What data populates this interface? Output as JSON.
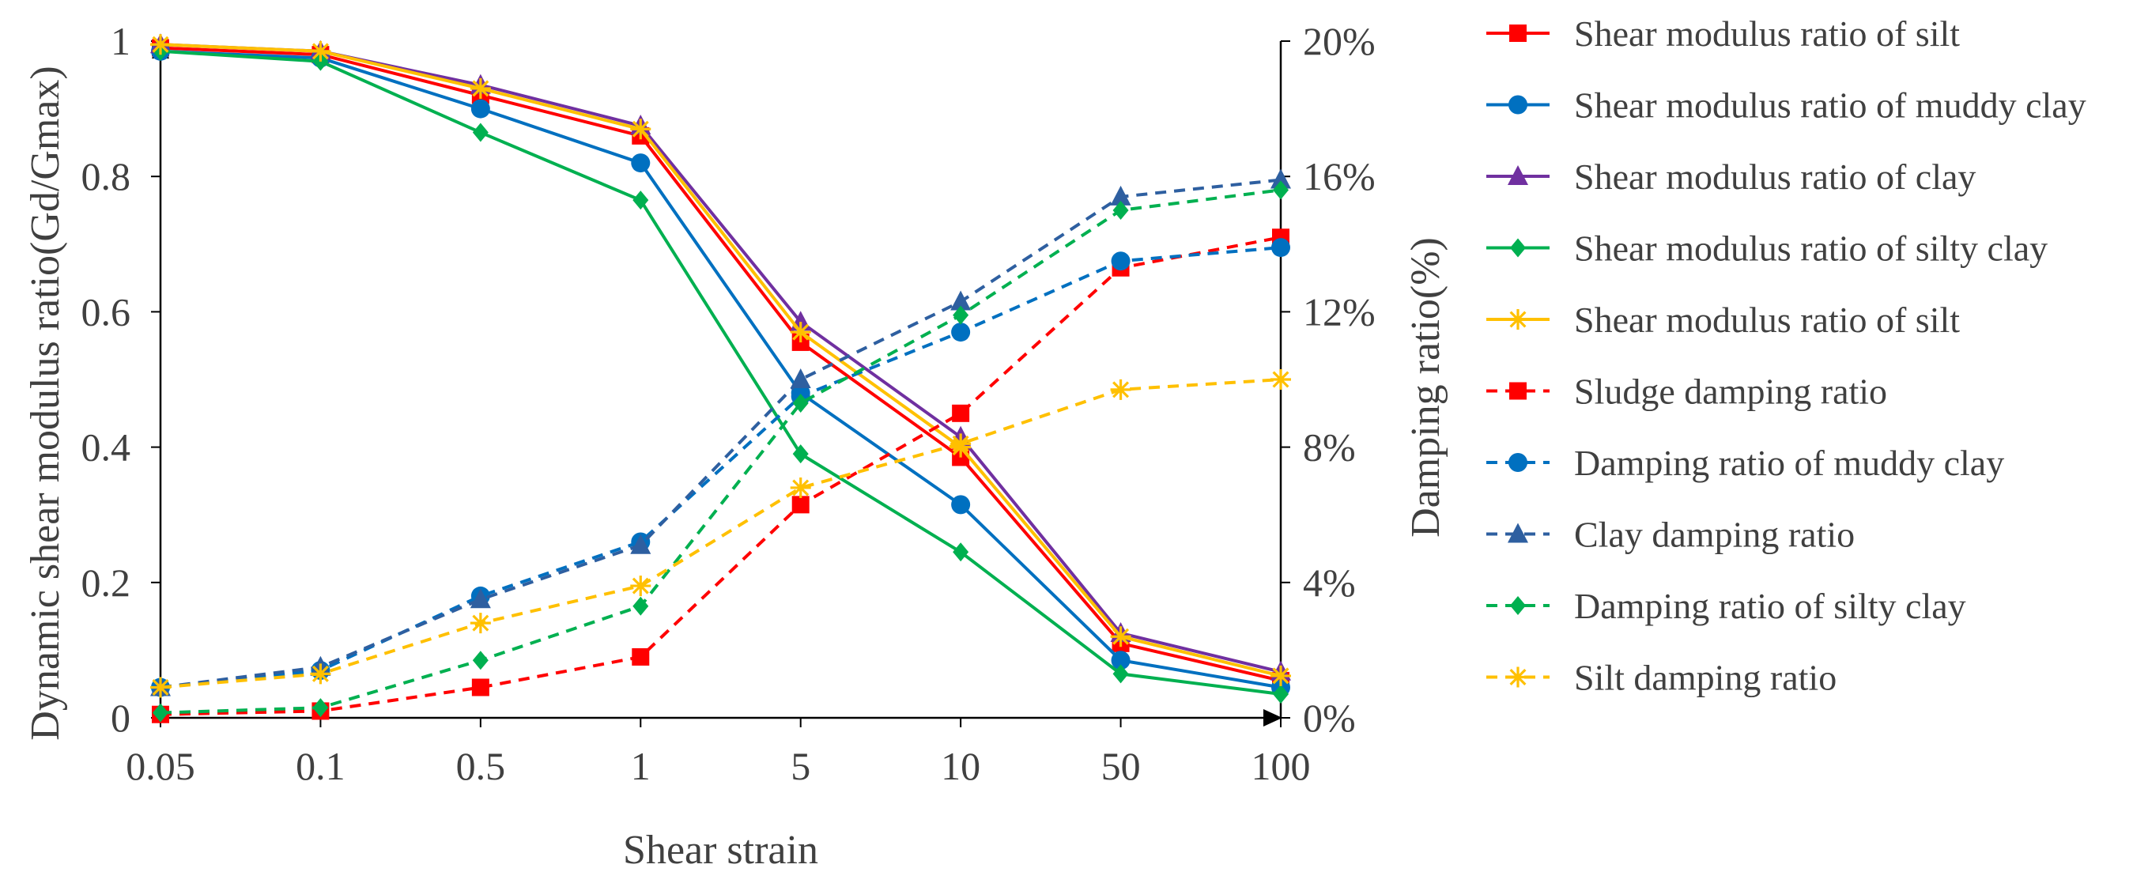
{
  "chart_data": {
    "type": "line",
    "title": "",
    "xlabel": "Shear strain",
    "ylabel_left": "Dynamic shear modulus ratio(Gd/Gmax)",
    "ylabel_right": "Damping ratio(%)",
    "x_categories": [
      "0.05",
      "0.1",
      "0.5",
      "1",
      "5",
      "10",
      "50",
      "100"
    ],
    "ylim_left": [
      0,
      1
    ],
    "ylim_right": [
      0,
      20
    ],
    "y_ticks_left": [
      "0",
      "0.2",
      "0.4",
      "0.6",
      "0.8",
      "1"
    ],
    "y_ticks_right": [
      "0%",
      "4%",
      "8%",
      "12%",
      "16%",
      "20%"
    ],
    "legend_position": "right",
    "series": [
      {
        "name": "Shear modulus ratio of silt",
        "axis": "left",
        "color": "#ff0000",
        "dash": "solid",
        "marker": "square",
        "values": [
          0.99,
          0.98,
          0.92,
          0.86,
          0.555,
          0.385,
          0.11,
          0.055
        ]
      },
      {
        "name": "Shear modulus ratio of muddy clay",
        "axis": "left",
        "color": "#0070c0",
        "dash": "solid",
        "marker": "circle",
        "values": [
          0.985,
          0.975,
          0.9,
          0.82,
          0.48,
          0.315,
          0.085,
          0.045
        ]
      },
      {
        "name": "Shear modulus ratio of clay",
        "axis": "left",
        "color": "#7030a0",
        "dash": "solid",
        "marker": "triangle",
        "values": [
          0.995,
          0.985,
          0.935,
          0.875,
          0.585,
          0.415,
          0.125,
          0.068
        ]
      },
      {
        "name": "Shear modulus ratio of silty clay",
        "axis": "left",
        "color": "#00b050",
        "dash": "solid",
        "marker": "diamond",
        "values": [
          0.985,
          0.97,
          0.865,
          0.765,
          0.39,
          0.245,
          0.065,
          0.035
        ]
      },
      {
        "name": "Shear modulus ratio of silt",
        "axis": "left",
        "color": "#ffc000",
        "dash": "solid",
        "marker": "star",
        "values": [
          0.995,
          0.985,
          0.93,
          0.87,
          0.57,
          0.4,
          0.12,
          0.062
        ]
      },
      {
        "name": "Sludge damping ratio",
        "axis": "right",
        "color": "#ff0000",
        "dash": "dashed",
        "marker": "square",
        "values": [
          0.1,
          0.2,
          0.9,
          1.8,
          6.3,
          9.0,
          13.3,
          14.2
        ]
      },
      {
        "name": "Damping ratio of muddy clay",
        "axis": "right",
        "color": "#0070c0",
        "dash": "dashed",
        "marker": "circle",
        "values": [
          0.9,
          1.4,
          3.6,
          5.2,
          9.5,
          11.4,
          13.5,
          13.9
        ]
      },
      {
        "name": "Clay damping ratio",
        "axis": "right",
        "color": "#2e5fa0",
        "dash": "dashed",
        "marker": "triangle",
        "values": [
          0.9,
          1.5,
          3.5,
          5.1,
          10.0,
          12.3,
          15.4,
          15.9
        ]
      },
      {
        "name": "Damping ratio of silty clay",
        "axis": "right",
        "color": "#00b050",
        "dash": "dashed",
        "marker": "diamond",
        "values": [
          0.15,
          0.3,
          1.7,
          3.3,
          9.3,
          11.9,
          15.0,
          15.6
        ]
      },
      {
        "name": "Silt damping ratio",
        "axis": "right",
        "color": "#ffc000",
        "dash": "dashed",
        "marker": "star",
        "values": [
          0.9,
          1.3,
          2.8,
          3.9,
          6.8,
          8.1,
          9.7,
          10.0
        ]
      }
    ]
  }
}
